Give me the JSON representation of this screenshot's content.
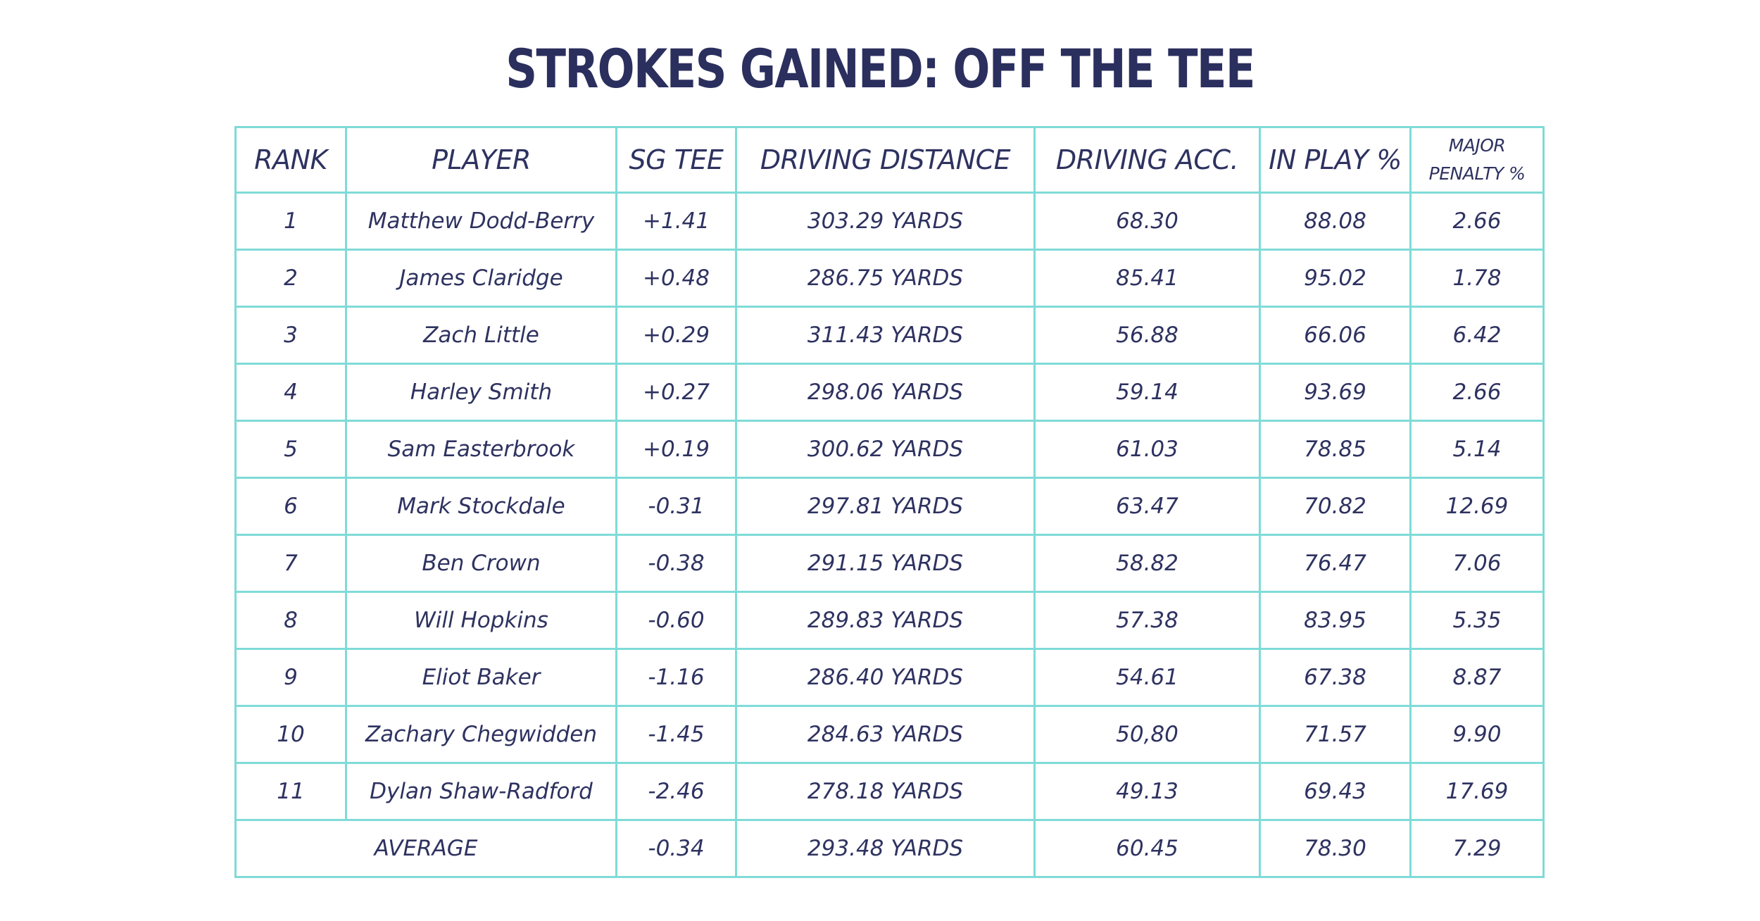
{
  "title": "STROKES GAINED: OFF THE TEE",
  "headers": {
    "rank": "RANK",
    "player": "PLAYER",
    "sg_tee": "SG TEE",
    "driving_distance": "DRIVING DISTANCE",
    "driving_acc": "DRIVING ACC.",
    "in_play": "IN PLAY %",
    "major_penalty_line1": "MAJOR",
    "major_penalty_line2": "PENALTY %"
  },
  "rows": [
    {
      "rank": "1",
      "player": "Matthew Dodd-Berry",
      "sg_tee": "+1.41",
      "distance": "303.29 YARDS",
      "accuracy": "68.30",
      "in_play": "88.08",
      "penalty": "2.66"
    },
    {
      "rank": "2",
      "player": "James Claridge",
      "sg_tee": "+0.48",
      "distance": "286.75 YARDS",
      "accuracy": "85.41",
      "in_play": "95.02",
      "penalty": "1.78"
    },
    {
      "rank": "3",
      "player": "Zach Little",
      "sg_tee": "+0.29",
      "distance": "311.43 YARDS",
      "accuracy": "56.88",
      "in_play": "66.06",
      "penalty": "6.42"
    },
    {
      "rank": "4",
      "player": "Harley Smith",
      "sg_tee": "+0.27",
      "distance": "298.06 YARDS",
      "accuracy": "59.14",
      "in_play": "93.69",
      "penalty": "2.66"
    },
    {
      "rank": "5",
      "player": "Sam Easterbrook",
      "sg_tee": "+0.19",
      "distance": "300.62 YARDS",
      "accuracy": "61.03",
      "in_play": "78.85",
      "penalty": "5.14"
    },
    {
      "rank": "6",
      "player": "Mark Stockdale",
      "sg_tee": "-0.31",
      "distance": "297.81 YARDS",
      "accuracy": "63.47",
      "in_play": "70.82",
      "penalty": "12.69"
    },
    {
      "rank": "7",
      "player": "Ben Crown",
      "sg_tee": "-0.38",
      "distance": "291.15 YARDS",
      "accuracy": "58.82",
      "in_play": "76.47",
      "penalty": "7.06"
    },
    {
      "rank": "8",
      "player": "Will Hopkins",
      "sg_tee": "-0.60",
      "distance": "289.83 YARDS",
      "accuracy": "57.38",
      "in_play": "83.95",
      "penalty": "5.35"
    },
    {
      "rank": "9",
      "player": "Eliot Baker",
      "sg_tee": "-1.16",
      "distance": "286.40 YARDS",
      "accuracy": "54.61",
      "in_play": "67.38",
      "penalty": "8.87"
    },
    {
      "rank": "10",
      "player": "Zachary Chegwidden",
      "sg_tee": "-1.45",
      "distance": "284.63 YARDS",
      "accuracy": "50,80",
      "in_play": "71.57",
      "penalty": "9.90"
    },
    {
      "rank": "11",
      "player": "Dylan Shaw-Radford",
      "sg_tee": "-2.46",
      "distance": "278.18 YARDS",
      "accuracy": "49.13",
      "in_play": "69.43",
      "penalty": "17.69"
    }
  ],
  "average": {
    "label": "AVERAGE",
    "sg_tee": "-0.34",
    "distance": "293.48 YARDS",
    "accuracy": "60.45",
    "in_play": "78.30",
    "penalty": "7.29"
  },
  "colors": {
    "text": "#2e3260",
    "border": "#7fdbd8"
  }
}
